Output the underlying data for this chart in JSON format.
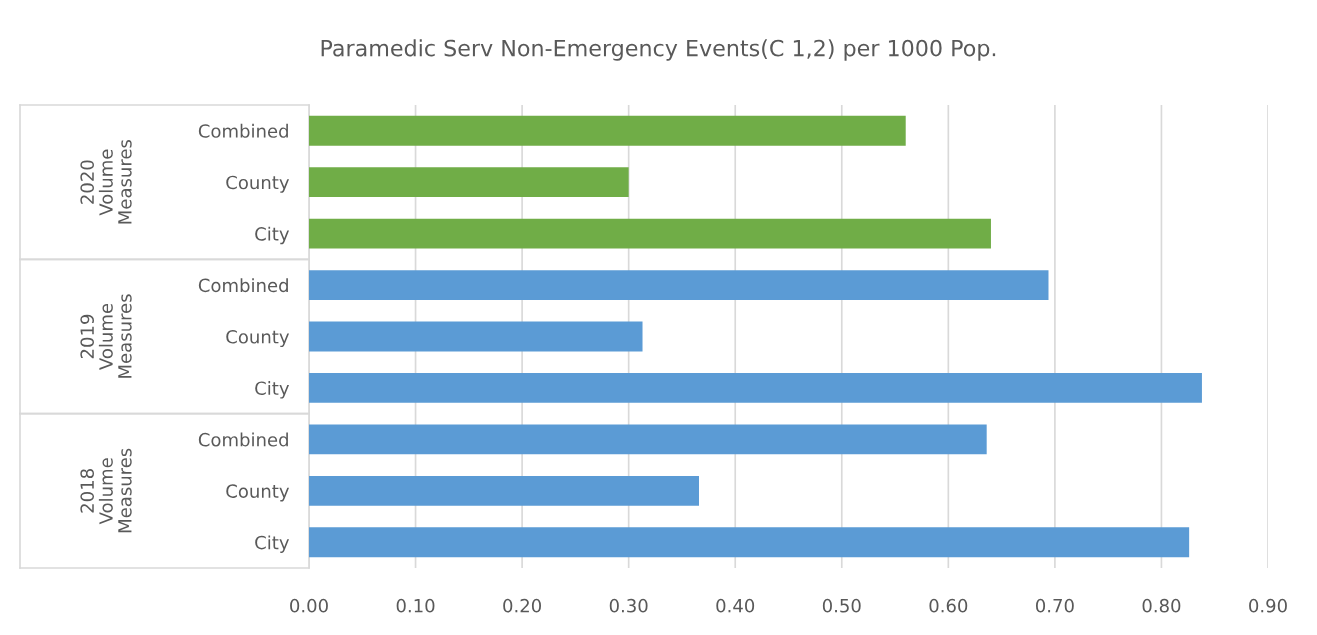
{
  "chart_data": {
    "type": "bar",
    "orientation": "horizontal",
    "title": "Paramedic Serv Non-Emergency Events(C 1,2) per 1000 Pop.",
    "categories": [
      "Combined",
      "County",
      "City",
      "Combined",
      "County",
      "City",
      "Combined",
      "County",
      "City"
    ],
    "values": [
      0.56,
      0.3,
      0.64,
      0.694,
      0.313,
      0.838,
      0.636,
      0.366,
      0.826
    ],
    "colors": [
      "#70ad47",
      "#70ad47",
      "#70ad47",
      "#5b9bd5",
      "#5b9bd5",
      "#5b9bd5",
      "#5b9bd5",
      "#5b9bd5",
      "#5b9bd5"
    ],
    "annotations": [
      "2020 Volume Measures",
      "2019 Volume Measures",
      "2018 Volume Measures"
    ],
    "xlim": [
      0,
      0.9
    ],
    "xticks": [
      {
        "value": 0,
        "label": "0.00"
      },
      {
        "value": 0.1,
        "label": "0.10"
      },
      {
        "value": 0.2,
        "label": "0.20"
      },
      {
        "value": 0.3,
        "label": "0.30"
      },
      {
        "value": 0.4,
        "label": "0.40"
      },
      {
        "value": 0.5,
        "label": "0.50"
      },
      {
        "value": 0.6,
        "label": "0.60"
      },
      {
        "value": 0.7,
        "label": "0.70"
      },
      {
        "value": 0.8,
        "label": "0.80"
      },
      {
        "value": 0.9,
        "label": "0.90"
      }
    ],
    "grid": "x",
    "legend": false
  }
}
